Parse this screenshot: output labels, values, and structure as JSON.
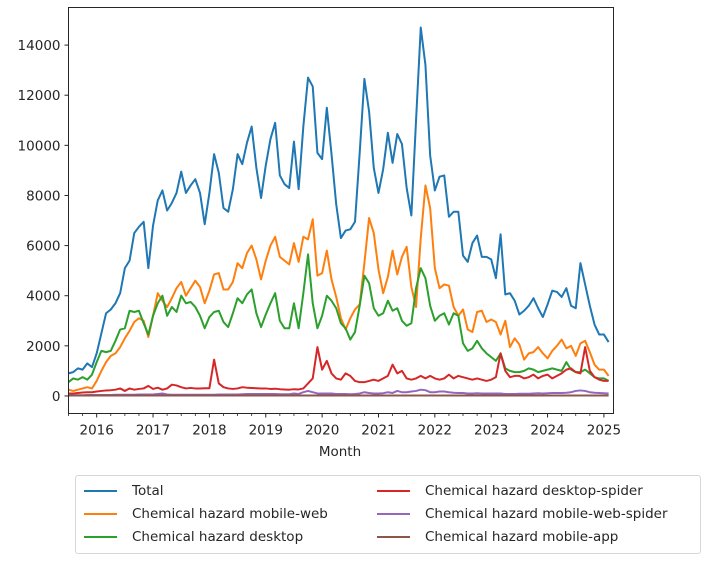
{
  "chart_data": {
    "type": "line",
    "title": "",
    "xlabel": "Month",
    "ylabel": "",
    "x_start": "2015-07",
    "x_frequency": "monthly",
    "xlim": [
      2015.5,
      2025.17
    ],
    "ylim": [
      -700,
      15500
    ],
    "x_ticks": [
      "2016",
      "2017",
      "2018",
      "2019",
      "2020",
      "2021",
      "2022",
      "2023",
      "2024",
      "2025"
    ],
    "x_tick_values": [
      2016,
      2017,
      2018,
      2019,
      2020,
      2021,
      2022,
      2023,
      2024,
      2025
    ],
    "y_ticks": [
      "0",
      "2000",
      "4000",
      "6000",
      "8000",
      "10000",
      "12000",
      "14000"
    ],
    "y_tick_values": [
      0,
      2000,
      4000,
      6000,
      8000,
      10000,
      12000,
      14000
    ],
    "grid": false,
    "legend_position": "below",
    "series": [
      {
        "name": "Total",
        "color": "#1f77b4",
        "values": [
          900,
          950,
          1100,
          1050,
          1300,
          1150,
          1700,
          2500,
          3300,
          3450,
          3700,
          4100,
          5100,
          5400,
          6500,
          6750,
          6950,
          5100,
          6800,
          7800,
          8200,
          7400,
          7700,
          8100,
          8950,
          8100,
          8400,
          8650,
          8100,
          6850,
          8100,
          9650,
          8900,
          7500,
          7350,
          8250,
          9650,
          9250,
          10100,
          10750,
          9100,
          7900,
          9200,
          10250,
          10900,
          8800,
          8450,
          8300,
          10150,
          8250,
          10750,
          12700,
          12350,
          9700,
          9450,
          11500,
          9650,
          7650,
          6300,
          6600,
          6650,
          6950,
          9700,
          12650,
          11350,
          9100,
          8100,
          9050,
          10500,
          9300,
          10450,
          10050,
          8300,
          7200,
          11000,
          14700,
          13200,
          9600,
          8200,
          8750,
          8800,
          7150,
          7350,
          7350,
          5600,
          5350,
          6100,
          6400,
          5550,
          5550,
          5450,
          4700,
          6450,
          4050,
          4100,
          3800,
          3250,
          3400,
          3600,
          3900,
          3500,
          3150,
          3650,
          4200,
          4150,
          3950,
          4300,
          3600,
          3500,
          5300,
          4450,
          3600,
          2850,
          2450,
          2450,
          2150
        ]
      },
      {
        "name": "Chemical hazard mobile-web",
        "color": "#ff7f0e",
        "values": [
          250,
          200,
          250,
          300,
          350,
          300,
          600,
          1000,
          1350,
          1600,
          1700,
          1950,
          2300,
          2600,
          2950,
          3100,
          3000,
          2350,
          3200,
          4100,
          3800,
          3550,
          3900,
          4300,
          4550,
          4000,
          4300,
          4600,
          4350,
          3700,
          4200,
          4850,
          4900,
          4250,
          4250,
          4550,
          5300,
          5100,
          5700,
          6000,
          5450,
          4650,
          5400,
          6000,
          6350,
          5550,
          5400,
          5250,
          6100,
          5350,
          6350,
          6250,
          7050,
          4800,
          4900,
          5800,
          4650,
          3950,
          3100,
          2650,
          3100,
          3450,
          3650,
          5300,
          7100,
          6500,
          5050,
          4100,
          4750,
          5800,
          4850,
          5550,
          5950,
          4350,
          3550,
          6300,
          8400,
          7500,
          5100,
          4300,
          4450,
          4400,
          3550,
          3200,
          3450,
          2650,
          2550,
          3350,
          3400,
          2950,
          3050,
          2950,
          2450,
          3000,
          1950,
          2300,
          2050,
          1450,
          1700,
          1750,
          1950,
          1700,
          1500,
          1800,
          2000,
          2250,
          1900,
          2000,
          1600,
          2100,
          2200,
          1750,
          1250,
          1050,
          1050,
          800
        ]
      },
      {
        "name": "Chemical hazard desktop",
        "color": "#2ca02c",
        "values": [
          550,
          700,
          650,
          750,
          650,
          850,
          1350,
          1800,
          1750,
          1800,
          2200,
          2650,
          2700,
          3400,
          3350,
          3400,
          2900,
          2450,
          3200,
          3700,
          4000,
          3200,
          3550,
          3350,
          4000,
          3700,
          3750,
          3550,
          3200,
          2700,
          3150,
          3350,
          3400,
          2950,
          2750,
          3300,
          3900,
          3700,
          4050,
          4250,
          3300,
          2750,
          3250,
          3700,
          4100,
          3000,
          2700,
          2700,
          3700,
          2700,
          4100,
          5650,
          3700,
          2700,
          3200,
          4000,
          3800,
          3500,
          2900,
          2700,
          2250,
          2550,
          3600,
          4800,
          4500,
          3500,
          3200,
          3300,
          3800,
          3400,
          3500,
          3000,
          2800,
          2900,
          4300,
          5100,
          4700,
          3600,
          3000,
          3200,
          3300,
          2850,
          3300,
          3200,
          2100,
          1800,
          1900,
          2200,
          1900,
          1700,
          1550,
          1400,
          1700,
          1100,
          1000,
          950,
          950,
          1000,
          1100,
          1050,
          950,
          1000,
          1050,
          1100,
          1050,
          1000,
          1350,
          1050,
          950,
          950,
          1050,
          900,
          750,
          700,
          700,
          600
        ]
      },
      {
        "name": "Chemical hazard desktop-spider",
        "color": "#d62728",
        "values": [
          100,
          100,
          120,
          140,
          150,
          150,
          180,
          200,
          220,
          230,
          250,
          300,
          200,
          300,
          250,
          280,
          300,
          400,
          280,
          330,
          250,
          300,
          450,
          420,
          350,
          300,
          320,
          300,
          300,
          310,
          310,
          1450,
          500,
          350,
          300,
          280,
          300,
          350,
          330,
          320,
          310,
          300,
          300,
          280,
          290,
          270,
          260,
          250,
          270,
          260,
          300,
          500,
          700,
          1950,
          1050,
          1400,
          900,
          700,
          650,
          900,
          800,
          600,
          550,
          550,
          600,
          650,
          600,
          700,
          800,
          1250,
          900,
          1000,
          700,
          650,
          700,
          800,
          700,
          800,
          700,
          650,
          700,
          850,
          700,
          800,
          750,
          700,
          650,
          700,
          650,
          600,
          650,
          750,
          1700,
          1000,
          750,
          800,
          800,
          700,
          750,
          850,
          700,
          800,
          850,
          700,
          800,
          900,
          1050,
          1100,
          950,
          900,
          1950,
          1000,
          750,
          650,
          600,
          600
        ]
      },
      {
        "name": "Chemical hazard mobile-web-spider",
        "color": "#9467bd",
        "values": [
          30,
          30,
          30,
          30,
          40,
          40,
          40,
          40,
          40,
          40,
          50,
          50,
          50,
          50,
          50,
          60,
          60,
          60,
          60,
          80,
          100,
          60,
          50,
          50,
          50,
          50,
          50,
          50,
          50,
          50,
          50,
          50,
          60,
          60,
          60,
          60,
          60,
          70,
          80,
          80,
          80,
          80,
          80,
          80,
          80,
          70,
          70,
          70,
          100,
          80,
          150,
          200,
          150,
          100,
          100,
          100,
          100,
          80,
          80,
          80,
          70,
          80,
          100,
          150,
          120,
          100,
          100,
          110,
          150,
          120,
          200,
          150,
          150,
          180,
          200,
          250,
          230,
          150,
          150,
          180,
          180,
          150,
          130,
          120,
          120,
          100,
          100,
          110,
          100,
          100,
          100,
          100,
          100,
          80,
          80,
          80,
          90,
          90,
          90,
          100,
          110,
          100,
          110,
          120,
          120,
          120,
          130,
          150,
          200,
          220,
          200,
          150,
          130,
          120,
          110,
          100
        ]
      },
      {
        "name": "Chemical hazard mobile-app",
        "color": "#8c564b",
        "values": [
          20,
          20,
          20,
          20,
          20,
          20,
          20,
          20,
          20,
          20,
          20,
          20,
          20,
          20,
          20,
          20,
          20,
          20,
          20,
          20,
          20,
          20,
          20,
          20,
          20,
          20,
          20,
          20,
          20,
          20,
          20,
          20,
          20,
          20,
          20,
          20,
          20,
          20,
          20,
          20,
          20,
          20,
          20,
          20,
          20,
          20,
          20,
          20,
          20,
          20,
          20,
          20,
          20,
          20,
          20,
          20,
          20,
          20,
          20,
          20,
          20,
          20,
          20,
          20,
          20,
          20,
          20,
          20,
          20,
          20,
          20,
          20,
          20,
          20,
          20,
          20,
          20,
          20,
          20,
          20,
          20,
          20,
          20,
          20,
          20,
          20,
          20,
          20,
          20,
          20,
          20,
          20,
          20,
          20,
          20,
          20,
          20,
          20,
          20,
          20,
          20,
          20,
          20,
          20,
          20,
          20,
          20,
          20,
          20,
          20,
          20,
          20,
          20,
          20,
          20,
          20
        ]
      }
    ]
  }
}
